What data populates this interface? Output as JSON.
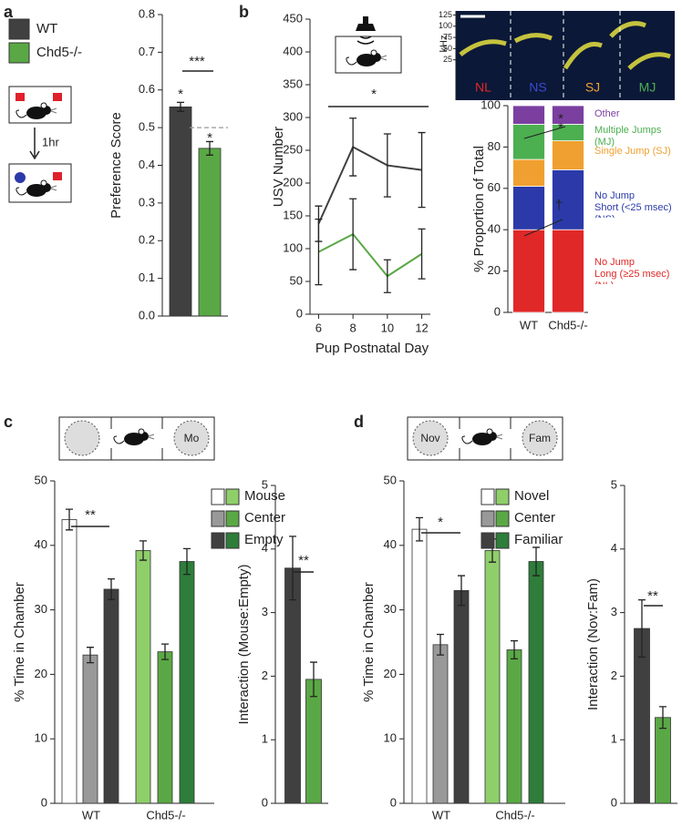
{
  "chart_data": [
    {
      "type": "bar",
      "panel": "a",
      "ylabel": "Preference Score",
      "ylim": [
        0,
        0.8
      ],
      "yticks": [
        {
          "value": 0,
          "label": "0.0"
        },
        0.1,
        0.2,
        0.3,
        0.4,
        0.5,
        0.6,
        0.7,
        0.8
      ],
      "series": [
        {
          "name": "WT",
          "color": "#404040",
          "values": [
            0.555
          ],
          "errors": [
            0.012
          ]
        },
        {
          "name": "Chd5-/-",
          "color": "#5aa845",
          "values": [
            0.445
          ],
          "errors": [
            0.018
          ]
        }
      ],
      "reference_line": 0.5,
      "annotations": [
        "*",
        "*",
        "***"
      ],
      "diagram_labels": [
        "1hr"
      ]
    },
    {
      "type": "line",
      "panel": "b",
      "ylabel": "USV Number",
      "xlabel": "Pup Postnatal Day",
      "x": [
        6,
        8,
        10,
        12
      ],
      "xlim": [
        5.5,
        12.5
      ],
      "ylim": [
        0,
        450
      ],
      "yticks": [
        0,
        50,
        100,
        150,
        200,
        250,
        300,
        350,
        400,
        450
      ],
      "series": [
        {
          "color": "#404040",
          "values": [
            138,
            255,
            227,
            220
          ],
          "errors": [
            27,
            44,
            48,
            57
          ]
        },
        {
          "color": "#5aa845",
          "values": [
            95,
            122,
            58,
            92
          ],
          "errors": [
            50,
            54,
            25,
            38
          ]
        }
      ],
      "annotations": [
        "*"
      ]
    },
    {
      "type": "spectrogram",
      "ylabel": "kHz",
      "ylim": [
        0,
        130
      ],
      "yticks": [
        25,
        50,
        75,
        100,
        125
      ],
      "labels": [
        "NL",
        "NS",
        "SJ",
        "MJ"
      ],
      "label_colors": [
        "#e02828",
        "#3a4ad0",
        "#f0a030",
        "#4caf50"
      ]
    },
    {
      "type": "stacked_bar",
      "ylabel": "% Proportion of Total",
      "ylim": [
        0,
        100
      ],
      "yticks": [
        0,
        20,
        40,
        60,
        80,
        100
      ],
      "categories": [
        "WT",
        "Chd5-/-"
      ],
      "series": [
        {
          "name": "No Jump\nLong (≥25 msec) (NL)",
          "color": "#e02828",
          "values": [
            40,
            40
          ]
        },
        {
          "name": "No Jump\nShort (<25 msec) (NS)",
          "color": "#2b3aa8",
          "values": [
            21,
            29
          ]
        },
        {
          "name": "Single Jump (SJ)",
          "color": "#f0a030",
          "values": [
            13,
            14
          ]
        },
        {
          "name": "Multiple Jumps (MJ)",
          "color": "#4caf50",
          "values": [
            17,
            8
          ]
        },
        {
          "name": "Other",
          "color": "#7b3fa0",
          "values": [
            9,
            9
          ]
        }
      ],
      "annotations": [
        "*",
        "*",
        "†"
      ]
    },
    {
      "type": "bar",
      "panel": "c",
      "ylabel": "% Time in Chamber",
      "ylim": [
        0,
        50
      ],
      "yticks": [
        0,
        10,
        20,
        30,
        40,
        50
      ],
      "categories": [
        "WT",
        "Chd5-/-"
      ],
      "series": [
        {
          "name": "Mouse",
          "colors": [
            "#ffffff",
            "#8fcf6a"
          ],
          "values": [
            44,
            39.2
          ],
          "errors": [
            1.6,
            1.5
          ]
        },
        {
          "name": "Center",
          "colors": [
            "#999999",
            "#5aa845"
          ],
          "values": [
            23,
            23.5
          ],
          "errors": [
            1.2,
            1.2
          ]
        },
        {
          "name": "Empty",
          "colors": [
            "#404040",
            "#2e7d3a"
          ],
          "values": [
            33.2,
            37.5
          ],
          "errors": [
            1.6,
            2
          ]
        }
      ],
      "annotations": [
        "**"
      ],
      "diagram_labels": [
        "Mo"
      ]
    },
    {
      "type": "bar",
      "ylabel": "Interaction (Mouse:Empty)",
      "ylim": [
        0,
        5
      ],
      "yticks": [
        0,
        1,
        2,
        3,
        4,
        5
      ],
      "values": [
        3.7,
        1.95
      ],
      "errors": [
        0.5,
        0.27
      ],
      "colors": [
        "#404040",
        "#5aa845"
      ],
      "annotations": [
        "**"
      ]
    },
    {
      "type": "bar",
      "panel": "d",
      "ylabel": "% Time in Chamber",
      "ylim": [
        0,
        50
      ],
      "yticks": [
        0,
        10,
        20,
        30,
        40,
        50
      ],
      "categories": [
        "WT",
        "Chd5-/-"
      ],
      "series": [
        {
          "name": "Novel",
          "colors": [
            "#ffffff",
            "#8fcf6a"
          ],
          "values": [
            42.5,
            39.2
          ],
          "errors": [
            1.8,
            1.8
          ]
        },
        {
          "name": "Center",
          "colors": [
            "#999999",
            "#5aa845"
          ],
          "values": [
            24.6,
            23.8
          ],
          "errors": [
            1.6,
            1.4
          ]
        },
        {
          "name": "Familiar",
          "colors": [
            "#404040",
            "#2e7d3a"
          ],
          "values": [
            33,
            37.5
          ],
          "errors": [
            2.3,
            2.2
          ]
        }
      ],
      "annotations": [
        "*"
      ],
      "diagram_labels": [
        "Nov",
        "Fam"
      ]
    },
    {
      "type": "bar",
      "ylabel": "Interaction (Nov:Fam)",
      "ylim": [
        0,
        5
      ],
      "yticks": [
        0,
        1,
        2,
        3,
        4,
        5
      ],
      "values": [
        2.75,
        1.35
      ],
      "errors": [
        0.45,
        0.17
      ],
      "colors": [
        "#404040",
        "#5aa845"
      ],
      "annotations": [
        "**"
      ]
    }
  ]
}
